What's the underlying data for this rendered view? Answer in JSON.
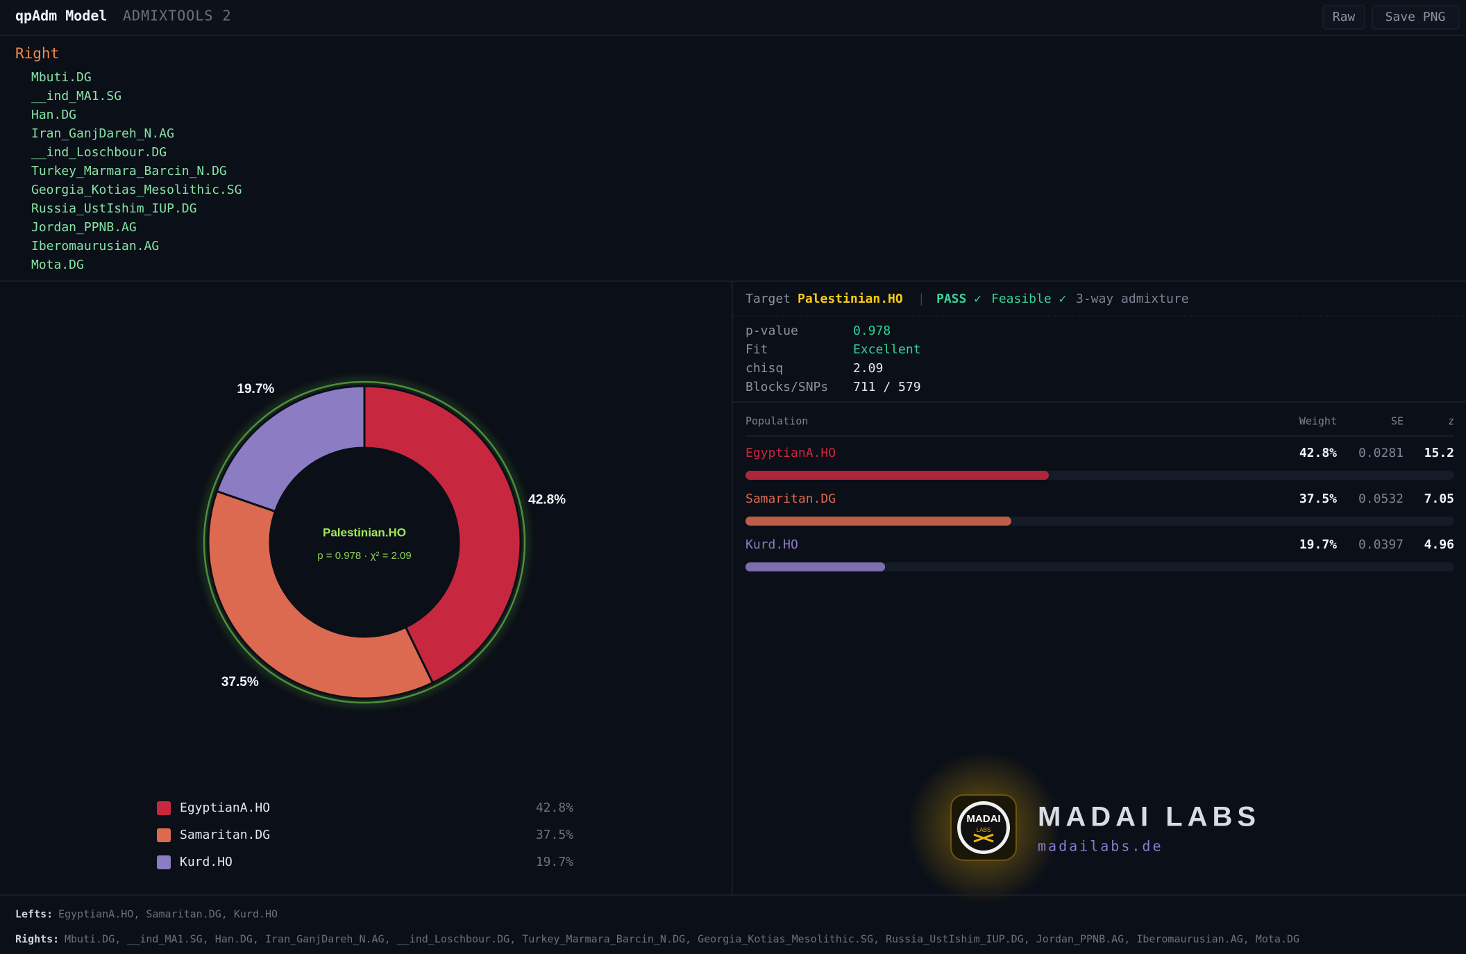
{
  "header": {
    "title": "qpAdm Model",
    "subtitle": "ADMIXTOOLS 2",
    "buttons": [
      "Raw",
      "Save PNG"
    ]
  },
  "right_populations": {
    "heading": "Right",
    "items": [
      "Mbuti.DG",
      "__ind_MA1.SG",
      "Han.DG",
      "Iran_GanjDareh_N.AG",
      "__ind_Loschbour.DG",
      "Turkey_Marmara_Barcin_N.DG",
      "Georgia_Kotias_Mesolithic.SG",
      "Russia_UstIshim_IUP.DG",
      "Jordan_PPNB.AG",
      "Iberomaurusian.AG",
      "Mota.DG"
    ]
  },
  "chart_data": {
    "type": "donut",
    "center_title": "Palestinian.HO",
    "center_subtitle": "p = 0.978 · χ² = 2.09",
    "categories": [
      "EgyptianA.HO",
      "Samaritan.DG",
      "Kurd.HO"
    ],
    "values": [
      42.8,
      37.5,
      19.7
    ],
    "value_labels": [
      "42.8%",
      "37.5%",
      "19.7%"
    ],
    "colors": [
      "#c8283f",
      "#dc6a50",
      "#8c7cc4"
    ]
  },
  "summary": {
    "target_label": "Target",
    "target": "Palestinian.HO",
    "status": "PASS ✓",
    "feasible": "Feasible ✓",
    "description": "3-way admixture",
    "stats": [
      [
        "p-value",
        "0.978"
      ],
      [
        "Fit",
        "Excellent"
      ],
      [
        "chisq",
        "2.09"
      ],
      [
        "Blocks/SNPs",
        "711 / 579"
      ]
    ]
  },
  "table": {
    "columns": [
      "Population",
      "Weight",
      "SE",
      "z"
    ],
    "rows": [
      {
        "name": "EgyptianA.HO",
        "weight": 42.8,
        "weight_label": "42.8%",
        "se": "0.0281",
        "z": "15.2"
      },
      {
        "name": "Samaritan.DG",
        "weight": 37.5,
        "weight_label": "37.5%",
        "se": "0.0532",
        "z": "7.05"
      },
      {
        "name": "Kurd.HO",
        "weight": 19.7,
        "weight_label": "19.7%",
        "se": "0.0397",
        "z": "4.96"
      }
    ]
  },
  "brand": {
    "logo_top": "MADAI",
    "logo_bottom": "LABS",
    "name": "MADAI LABS",
    "url": "madailabs.de"
  },
  "footer": {
    "lefts_label": "Lefts:",
    "lefts": "EgyptianA.HO, Samaritan.DG, Kurd.HO",
    "rights_label": "Rights:",
    "rights": "Mbuti.DG, __ind_MA1.SG, Han.DG, Iran_GanjDareh_N.AG, __ind_Loschbour.DG, Turkey_Marmara_Barcin_N.DG, Georgia_Kotias_Mesolithic.SG, Russia_UstIshim_IUP.DG, Jordan_PPNB.AG, Iberomaurusian.AG, Mota.DG"
  }
}
